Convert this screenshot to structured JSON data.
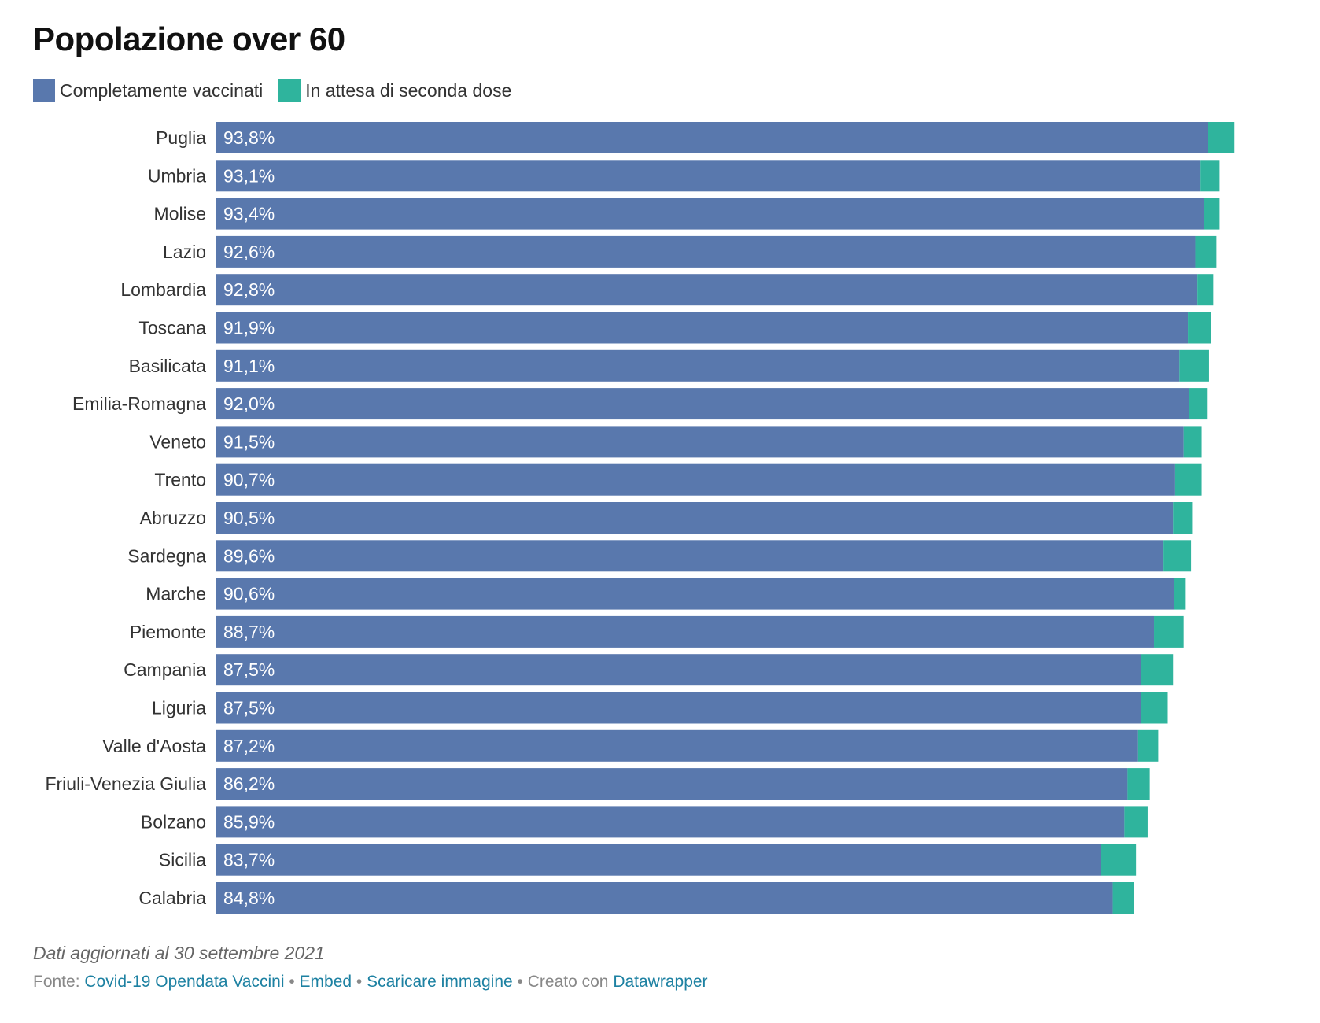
{
  "title": "Popolazione over 60",
  "legend": {
    "items": [
      {
        "label": "Completamente vaccinati",
        "color": "#5978ad"
      },
      {
        "label": "In attesa di seconda dose",
        "color": "#2fb49d"
      }
    ]
  },
  "chart_data": {
    "type": "bar",
    "orientation": "horizontal",
    "stacked": true,
    "xlim": [
      0,
      100
    ],
    "categories": [
      "Puglia",
      "Umbria",
      "Molise",
      "Lazio",
      "Lombardia",
      "Toscana",
      "Basilicata",
      "Emilia-Romagna",
      "Veneto",
      "Trento",
      "Abruzzo",
      "Sardegna",
      "Marche",
      "Piemonte",
      "Campania",
      "Liguria",
      "Valle d'Aosta",
      "Friuli-Venezia Giulia",
      "Bolzano",
      "Sicilia",
      "Calabria"
    ],
    "series": [
      {
        "name": "Completamente vaccinati",
        "color": "#5978ad",
        "values": [
          93.8,
          93.1,
          93.4,
          92.6,
          92.8,
          91.9,
          91.1,
          92.0,
          91.5,
          90.7,
          90.5,
          89.6,
          90.6,
          88.7,
          87.5,
          87.5,
          87.2,
          86.2,
          85.9,
          83.7,
          84.8
        ],
        "labels": [
          "93,8%",
          "93,1%",
          "93,4%",
          "92,6%",
          "92,8%",
          "91,9%",
          "91,1%",
          "92,0%",
          "91,5%",
          "90,7%",
          "90,5%",
          "89,6%",
          "90,6%",
          "88,7%",
          "87,5%",
          "87,5%",
          "87,2%",
          "86,2%",
          "85,9%",
          "83,7%",
          "84,8%"
        ]
      },
      {
        "name": "In attesa di seconda dose",
        "color": "#2fb49d",
        "values": [
          2.5,
          1.8,
          1.5,
          2.0,
          1.5,
          2.2,
          2.8,
          1.7,
          1.7,
          2.5,
          1.8,
          2.6,
          1.1,
          2.8,
          3.0,
          2.5,
          1.9,
          2.1,
          2.2,
          3.3,
          2.0
        ]
      }
    ],
    "grid": false,
    "legend_position": "top-left"
  },
  "footer": {
    "note": "Dati aggiornati al 30 settembre 2021",
    "source_prefix": "Fonte:",
    "source_link": "Covid-19 Opendata Vaccini",
    "separator": "•",
    "embed_link": "Embed",
    "download_link": "Scaricare immagine",
    "created_with": "Creato con",
    "tool_link": "Datawrapper"
  }
}
